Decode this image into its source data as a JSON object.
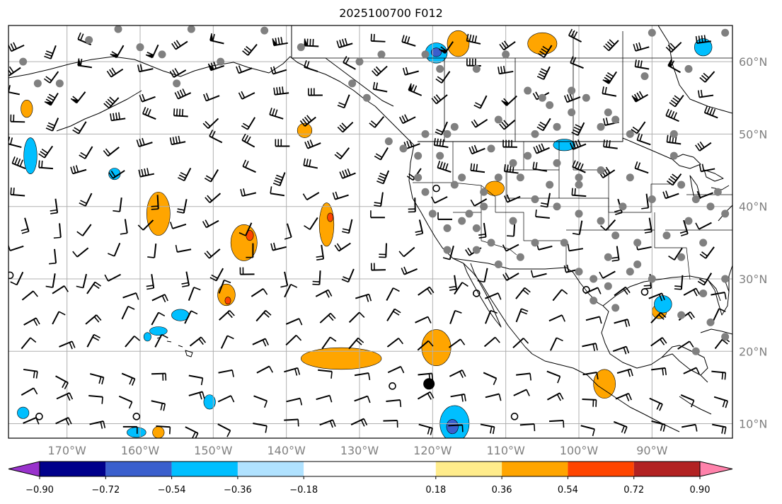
{
  "title": "2025100700 F012",
  "map": {
    "lon_range": [
      -178,
      -79
    ],
    "lat_range": [
      8,
      65
    ],
    "lon_ticks": [
      {
        "value": -170,
        "label": "170°W"
      },
      {
        "value": -160,
        "label": "160°W"
      },
      {
        "value": -150,
        "label": "150°W"
      },
      {
        "value": -140,
        "label": "140°W"
      },
      {
        "value": -130,
        "label": "130°W"
      },
      {
        "value": -120,
        "label": "120°W"
      },
      {
        "value": -110,
        "label": "110°W"
      },
      {
        "value": -100,
        "label": "100°W"
      },
      {
        "value": -90,
        "label": "90°W"
      }
    ],
    "lat_ticks": [
      {
        "value": 10,
        "label": "10°N"
      },
      {
        "value": 20,
        "label": "20°N"
      },
      {
        "value": 30,
        "label": "30°N"
      },
      {
        "value": 40,
        "label": "40°N"
      },
      {
        "value": 50,
        "label": "50°N"
      },
      {
        "value": 60,
        "label": "60°N"
      }
    ],
    "grid": true,
    "tick_label_color": "#808080"
  },
  "colorbar": {
    "colors": [
      "#9932cc",
      "#00008b",
      "#3a5fcd",
      "#00bfff",
      "#b0e2ff",
      "#ffffff",
      "#ffec8b",
      "#ffa500",
      "#ff4500",
      "#b22222",
      "#ff82ab"
    ],
    "bounds": [
      -1.08,
      -0.9,
      -0.72,
      -0.54,
      -0.36,
      -0.18,
      0.18,
      0.36,
      0.54,
      0.72,
      0.9,
      1.08
    ],
    "tick_values": [
      -0.9,
      -0.72,
      -0.54,
      -0.36,
      -0.18,
      0.18,
      0.36,
      0.54,
      0.72,
      0.9
    ],
    "tick_labels": [
      "−0.90",
      "−0.72",
      "−0.54",
      "−0.36",
      "−0.18",
      "0.18",
      "0.36",
      "0.54",
      "0.72",
      "0.90"
    ],
    "extend": "both"
  },
  "positive_areas": [
    {
      "lon": -157.5,
      "lat": 39,
      "rx": 1.6,
      "ry": 3,
      "level": "orange"
    },
    {
      "lon": -145.8,
      "lat": 35,
      "rx": 1.8,
      "ry": 2.5,
      "level": "orange"
    },
    {
      "lon": -145,
      "lat": 36,
      "rx": 0.5,
      "ry": 0.7,
      "level": "red"
    },
    {
      "lon": -134.5,
      "lat": 37.5,
      "rx": 1.0,
      "ry": 3,
      "level": "orange"
    },
    {
      "lon": -134,
      "lat": 38.5,
      "rx": 0.4,
      "ry": 0.6,
      "level": "red"
    },
    {
      "lon": -148.2,
      "lat": 27.8,
      "rx": 1.2,
      "ry": 1.5,
      "level": "orange"
    },
    {
      "lon": -148,
      "lat": 27,
      "rx": 0.4,
      "ry": 0.5,
      "level": "red"
    },
    {
      "lon": -132.5,
      "lat": 19,
      "rx": 5.5,
      "ry": 1.5,
      "level": "orange"
    },
    {
      "lon": -119.5,
      "lat": 20.5,
      "rx": 2,
      "ry": 2.5,
      "level": "orange"
    },
    {
      "lon": -137.5,
      "lat": 50.5,
      "rx": 1,
      "ry": 1,
      "level": "orange"
    },
    {
      "lon": -116.5,
      "lat": 62.5,
      "rx": 1.5,
      "ry": 1.8,
      "level": "orange"
    },
    {
      "lon": -111.5,
      "lat": 42.5,
      "rx": 1.3,
      "ry": 1,
      "level": "orange"
    },
    {
      "lon": -105,
      "lat": 62.5,
      "rx": 2,
      "ry": 1.5,
      "level": "orange"
    },
    {
      "lon": -89,
      "lat": 25.5,
      "rx": 1,
      "ry": 1,
      "level": "orange"
    },
    {
      "lon": -96.5,
      "lat": 15.5,
      "rx": 1.5,
      "ry": 2,
      "level": "orange"
    },
    {
      "lon": -175.5,
      "lat": 53.5,
      "rx": 0.8,
      "ry": 1.2,
      "level": "orange"
    },
    {
      "lon": -157.5,
      "lat": 8.8,
      "rx": 0.8,
      "ry": 0.8,
      "level": "orange"
    }
  ],
  "negative_areas": [
    {
      "lon": -175,
      "lat": 47,
      "rx": 0.9,
      "ry": 2.5,
      "level": "blue"
    },
    {
      "lon": -163.5,
      "lat": 44.5,
      "rx": 0.8,
      "ry": 0.8,
      "level": "blue"
    },
    {
      "lon": -154.5,
      "lat": 25,
      "rx": 1.2,
      "ry": 0.8,
      "level": "blue"
    },
    {
      "lon": -157.5,
      "lat": 22.8,
      "rx": 1.2,
      "ry": 0.6,
      "level": "blue"
    },
    {
      "lon": -159,
      "lat": 22,
      "rx": 0.5,
      "ry": 0.6,
      "level": "blue"
    },
    {
      "lon": -117,
      "lat": 10,
      "rx": 2,
      "ry": 2.5,
      "level": "blue"
    },
    {
      "lon": -117.3,
      "lat": 9.6,
      "rx": 0.8,
      "ry": 1.0,
      "level": "mid-blue"
    },
    {
      "lon": -119.5,
      "lat": 61.2,
      "rx": 1.5,
      "ry": 1.4,
      "level": "blue"
    },
    {
      "lon": -119.5,
      "lat": 61.3,
      "rx": 0.7,
      "ry": 0.6,
      "level": "mid-blue"
    },
    {
      "lon": -83,
      "lat": 62,
      "rx": 1.2,
      "ry": 1.2,
      "level": "blue"
    },
    {
      "lon": -88.5,
      "lat": 26.5,
      "rx": 1.2,
      "ry": 1.2,
      "level": "blue"
    },
    {
      "lon": -102,
      "lat": 48.5,
      "rx": 1.5,
      "ry": 0.8,
      "level": "blue"
    },
    {
      "lon": -150.5,
      "lat": 13,
      "rx": 0.8,
      "ry": 1.0,
      "level": "blue"
    },
    {
      "lon": -160.5,
      "lat": 8.8,
      "rx": 1.3,
      "ry": 0.7,
      "level": "blue"
    },
    {
      "lon": -176,
      "lat": 11.5,
      "rx": 0.8,
      "ry": 0.8,
      "level": "blue"
    }
  ],
  "gray_dots": [
    [
      -163,
      64.5
    ],
    [
      -153,
      64.5
    ],
    [
      -143,
      64.3
    ],
    [
      -171,
      57
    ],
    [
      -157,
      61
    ],
    [
      -149,
      60
    ],
    [
      -138,
      62
    ],
    [
      -130,
      60
    ],
    [
      -127,
      61
    ],
    [
      -119,
      59
    ],
    [
      -118,
      50
    ],
    [
      -111,
      52
    ],
    [
      -105,
      55
    ],
    [
      -101,
      53
    ],
    [
      -97,
      51
    ],
    [
      -95,
      52
    ],
    [
      -114,
      59
    ],
    [
      -110,
      61
    ],
    [
      -104,
      54
    ],
    [
      -99,
      55
    ],
    [
      -87,
      50
    ],
    [
      -80,
      64
    ],
    [
      -90,
      64
    ],
    [
      -85,
      59
    ],
    [
      -91,
      58
    ],
    [
      -124,
      48
    ],
    [
      -122,
      44
    ],
    [
      -121,
      42
    ],
    [
      -120,
      39
    ],
    [
      -118,
      37
    ],
    [
      -116,
      38
    ],
    [
      -114,
      37
    ],
    [
      -113,
      42
    ],
    [
      -111,
      44
    ],
    [
      -109,
      46
    ],
    [
      -107,
      47
    ],
    [
      -106,
      50
    ],
    [
      -103,
      46
    ],
    [
      -100,
      44
    ],
    [
      -97,
      45
    ],
    [
      -93,
      44
    ],
    [
      -90,
      41
    ],
    [
      -86,
      43
    ],
    [
      -84,
      41
    ],
    [
      -82,
      40
    ],
    [
      -80,
      39
    ],
    [
      -85,
      38
    ],
    [
      -88,
      36
    ],
    [
      -92,
      35
    ],
    [
      -95,
      36
    ],
    [
      -97,
      38
    ],
    [
      -100,
      39
    ],
    [
      -103,
      40
    ],
    [
      -106,
      35
    ],
    [
      -108,
      33
    ],
    [
      -111,
      32
    ],
    [
      -114,
      34
    ],
    [
      -118,
      34
    ],
    [
      -116,
      44
    ],
    [
      -112,
      48
    ],
    [
      -101,
      56
    ],
    [
      -107,
      56
    ],
    [
      -96,
      53
    ],
    [
      -93,
      50
    ],
    [
      -81,
      42
    ],
    [
      -83,
      35
    ],
    [
      -86,
      33
    ],
    [
      -90,
      30
    ],
    [
      -93,
      31
    ],
    [
      -96,
      29
    ],
    [
      -100,
      31
    ],
    [
      -98,
      27
    ],
    [
      -95,
      26
    ],
    [
      -83,
      28
    ],
    [
      -82,
      24
    ],
    [
      -84,
      20
    ],
    [
      -80,
      22
    ],
    [
      -80,
      30
    ],
    [
      -122,
      47
    ],
    [
      -119,
      47
    ],
    [
      -117,
      43
    ],
    [
      -113,
      40
    ],
    [
      -115,
      39
    ],
    [
      -109,
      38
    ],
    [
      -104,
      43
    ],
    [
      -100,
      43
    ],
    [
      -94,
      40
    ],
    [
      -87,
      47
    ],
    [
      -92,
      32
    ],
    [
      -96,
      33
    ],
    [
      -102,
      35
    ],
    [
      -112,
      35
    ],
    [
      -106,
      41
    ],
    [
      -108,
      44
    ],
    [
      -98,
      30
    ],
    [
      -160,
      62
    ],
    [
      -174,
      57
    ],
    [
      -176,
      60
    ],
    [
      -167,
      63
    ],
    [
      -155,
      57
    ],
    [
      -121,
      61
    ],
    [
      -117,
      51
    ],
    [
      -121,
      50
    ],
    [
      -103,
      51
    ],
    [
      -126,
      49
    ],
    [
      -129,
      55
    ],
    [
      -131,
      57
    ],
    [
      -86,
      25
    ]
  ],
  "open_circles": [
    [
      -177.8,
      30.5
    ],
    [
      -173.8,
      11
    ],
    [
      -160.5,
      11
    ],
    [
      -125.5,
      15.2
    ],
    [
      -114,
      28
    ],
    [
      -108.8,
      11
    ],
    [
      -99,
      28.5
    ],
    [
      -119.5,
      42.5
    ],
    [
      -91,
      28.2
    ]
  ],
  "black_dot": [
    -120.5,
    15.5
  ]
}
